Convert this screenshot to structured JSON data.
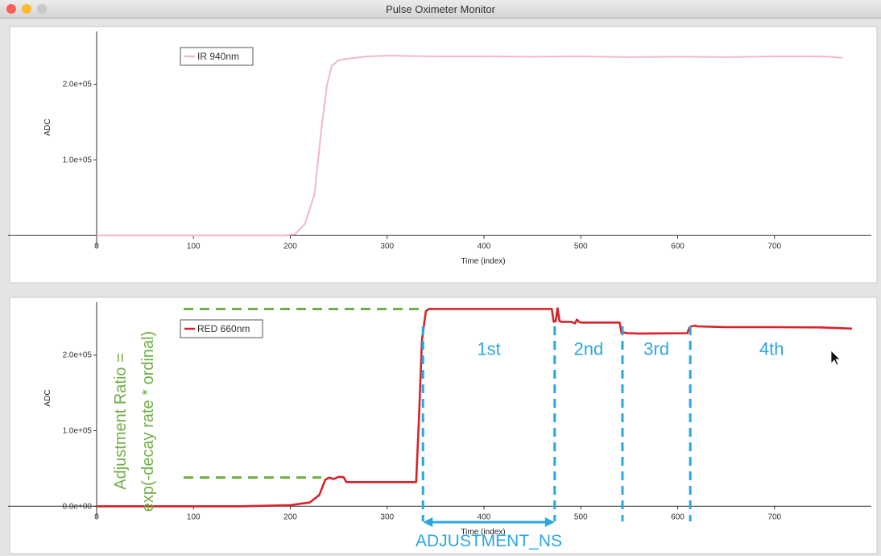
{
  "window": {
    "title": "Pulse Oximeter Monitor",
    "traffic_colors": [
      "#fc5f57",
      "#fdbc2e",
      "#c8c8c8"
    ]
  },
  "chart_data": [
    {
      "type": "line",
      "xlabel": "Time (index)",
      "ylabel": "ADC",
      "xlim": [
        0,
        800
      ],
      "ylim": [
        -5000,
        270000
      ],
      "xticks": [
        0,
        100,
        200,
        300,
        400,
        500,
        600,
        700
      ],
      "xtick_labels": [
        "0",
        "100",
        "200",
        "300",
        "400",
        "500",
        "600",
        "700"
      ],
      "yticks": [
        100000,
        200000
      ],
      "ytick_labels": [
        "1.0e+05",
        "2.0e+05"
      ],
      "legend_position": "top-left",
      "series": [
        {
          "name": "IR 940nm",
          "color": "#f2b8c6",
          "x": [
            0,
            100,
            195,
            205,
            215,
            225,
            232,
            238,
            243,
            250,
            260,
            280,
            300,
            350,
            400,
            450,
            500,
            550,
            600,
            650,
            700,
            750,
            770
          ],
          "y": [
            0,
            0,
            0,
            2000,
            15000,
            55000,
            140000,
            200000,
            225000,
            232000,
            234000,
            237000,
            238000,
            237000,
            237000,
            236500,
            237000,
            236000,
            236500,
            236000,
            237000,
            237000,
            235000
          ]
        }
      ]
    },
    {
      "type": "line",
      "xlabel": "Time (index)",
      "ylabel": "ADC",
      "xlim": [
        0,
        800
      ],
      "ylim": [
        -5000,
        270000
      ],
      "xticks": [
        0,
        100,
        200,
        300,
        400,
        500,
        600,
        700
      ],
      "xtick_labels": [
        "0",
        "100",
        "200",
        "300",
        "400",
        "500",
        "600",
        "700"
      ],
      "yticks": [
        0,
        100000,
        200000
      ],
      "ytick_labels": [
        "0.0e+00",
        "1.0e+05",
        "2.0e+05"
      ],
      "legend_position": "top-left",
      "series": [
        {
          "name": "RED 660nm",
          "color": "#d7222a",
          "x": [
            0,
            150,
            200,
            220,
            230,
            236,
            240,
            245,
            250,
            255,
            258,
            262,
            330,
            333,
            336,
            340,
            343,
            470,
            472,
            474,
            476,
            478,
            480,
            490,
            492,
            494,
            496,
            498,
            500,
            540,
            542,
            544,
            546,
            548,
            560,
            610,
            612,
            614,
            616,
            618,
            620,
            650,
            700,
            750,
            780
          ],
          "y": [
            0,
            0,
            1500,
            5000,
            15000,
            35000,
            38000,
            36000,
            39000,
            38500,
            32000,
            32000,
            32000,
            120000,
            220000,
            258000,
            261000,
            261000,
            244000,
            245000,
            262000,
            245000,
            244000,
            244000,
            243000,
            242000,
            247000,
            244000,
            243000,
            243000,
            229000,
            230000,
            229500,
            229000,
            228500,
            229000,
            236000,
            238000,
            238500,
            239000,
            238000,
            237000,
            237000,
            236500,
            235000
          ]
        }
      ]
    }
  ],
  "annotations": {
    "segments": [
      "1st",
      "2nd",
      "3rd",
      "4th"
    ],
    "ratio_line1": "Adjustment Ratio =",
    "ratio_line2": "exp(-decay rate * ordinal)",
    "adjustment_label": "ADJUSTMENT_NS",
    "blue": "#2aa7e0",
    "green": "#6fae45"
  }
}
